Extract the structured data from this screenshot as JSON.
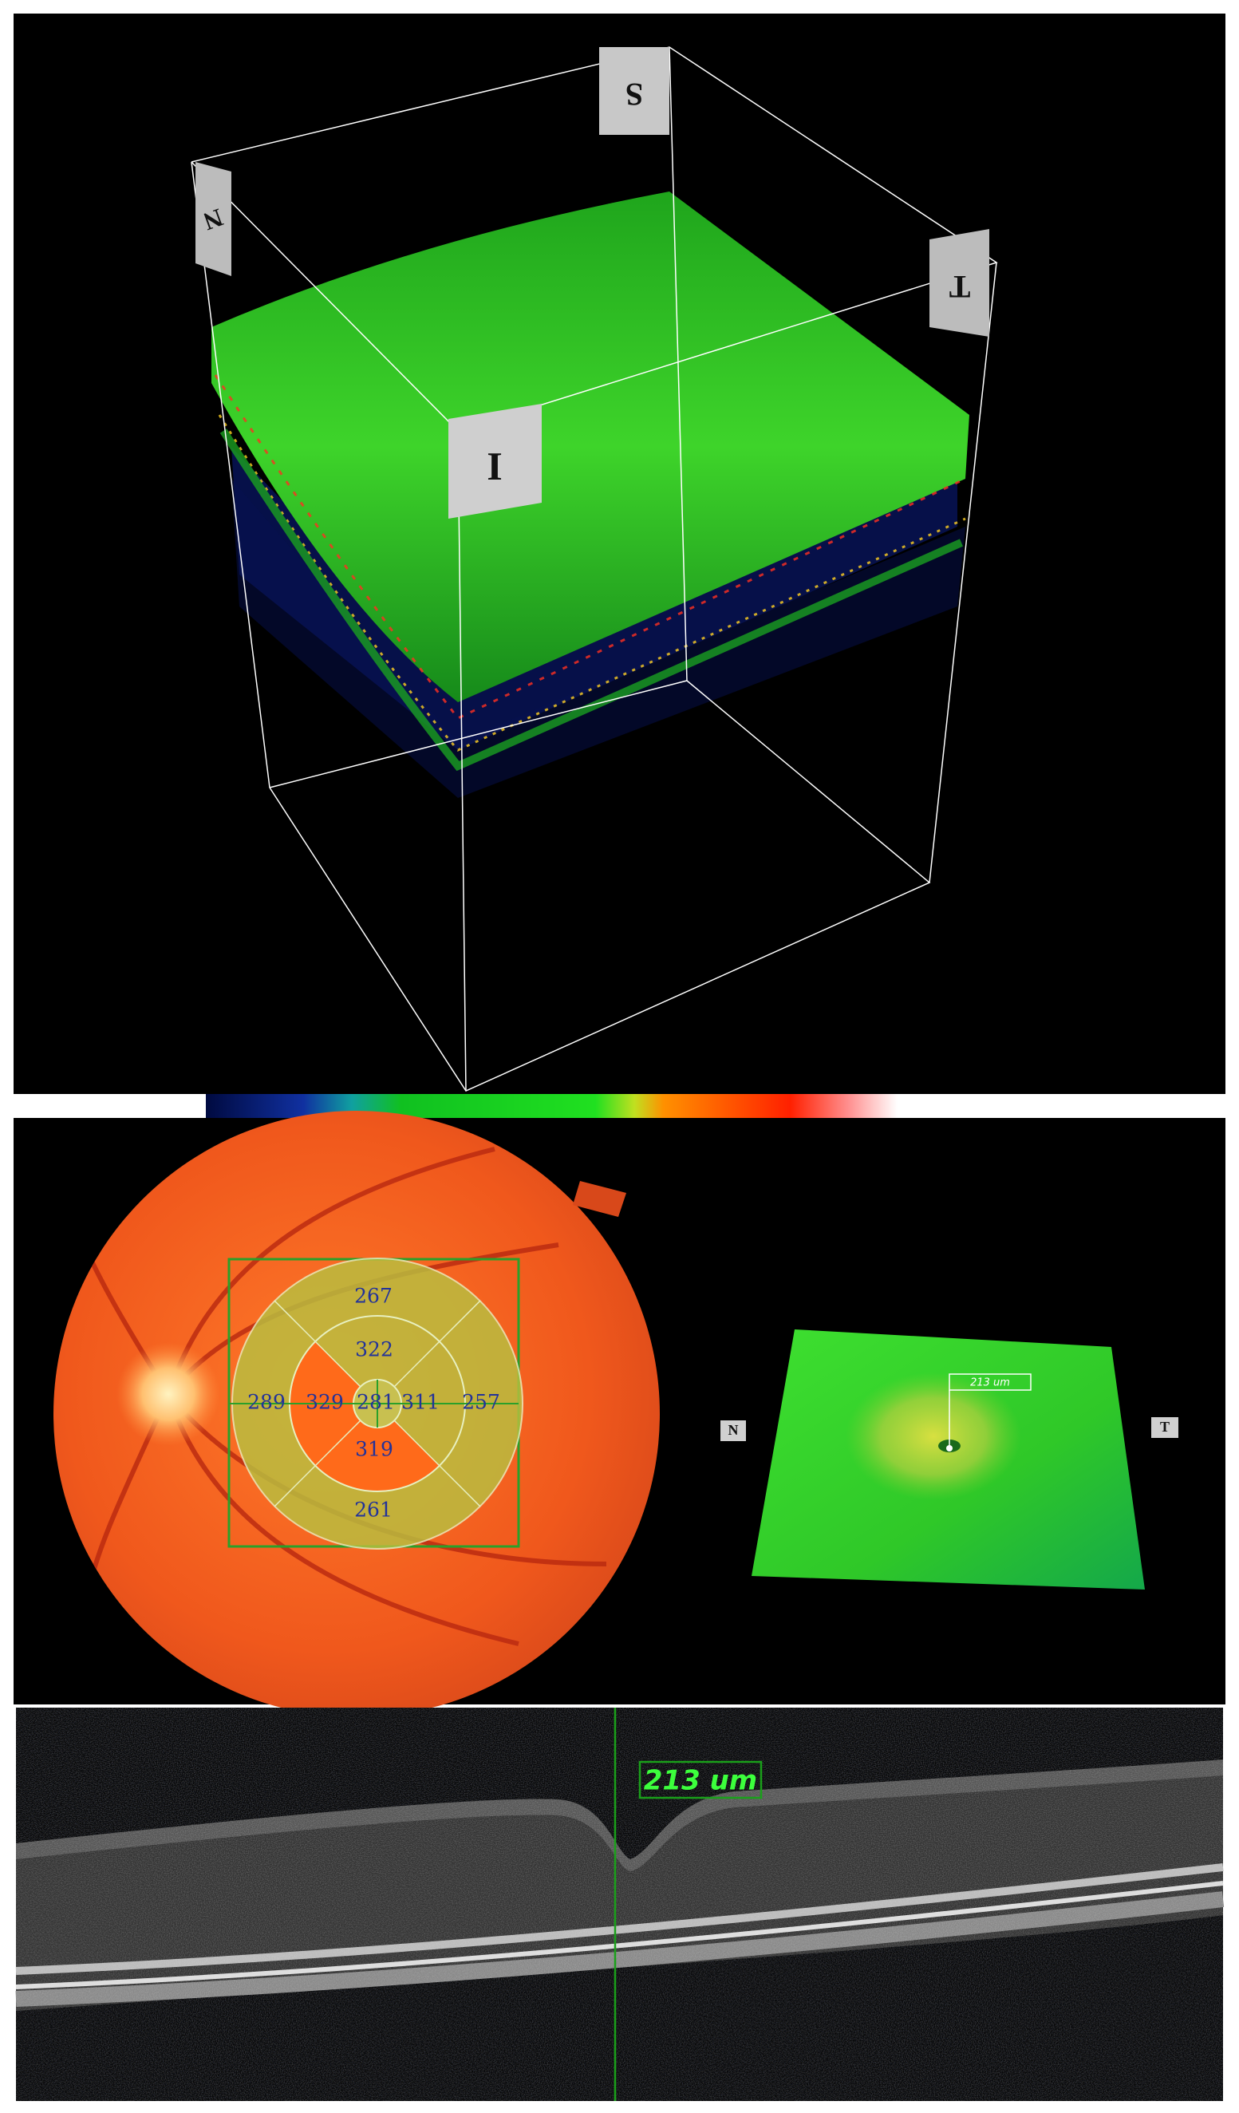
{
  "cube_labels": {
    "superior": "S",
    "nasal": "N",
    "temporal": "T",
    "inferior": "I"
  },
  "etdrs_grid": {
    "outer_superior": 267,
    "inner_superior": 322,
    "outer_nasal": 289,
    "inner_nasal": 329,
    "center": 281,
    "inner_temporal": 311,
    "outer_temporal": 257,
    "inner_inferior": 319,
    "outer_inferior": 261
  },
  "surface_map": {
    "left_label": "N",
    "right_label": "T",
    "measurement": "213 um"
  },
  "bscan": {
    "measurement": "213 um"
  }
}
